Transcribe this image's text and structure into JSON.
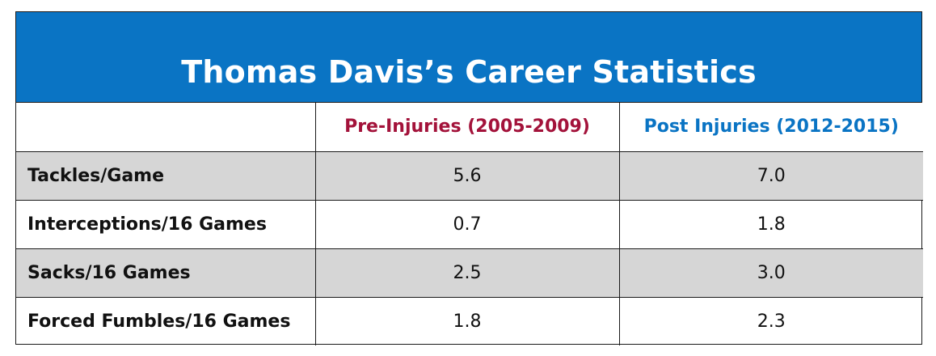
{
  "colors": {
    "header_bg": "#0a74c4",
    "header_text": "#ffffff",
    "pre_injuries_text": "#a3123a",
    "post_injuries_text": "#0a74c4",
    "shaded_row": "#d6d6d6"
  },
  "chart_data": {
    "type": "table",
    "title": "Thomas Davis’s Career Statistics",
    "columns": [
      "",
      "Pre-Injuries (2005-2009)",
      "Post Injuries (2012-2015)"
    ],
    "rows": [
      {
        "label": "Tackles/Game",
        "pre": "5.6",
        "post": "7.0"
      },
      {
        "label": "Interceptions/16 Games",
        "pre": "0.7",
        "post": "1.8"
      },
      {
        "label": "Sacks/16 Games",
        "pre": "2.5",
        "post": "3.0"
      },
      {
        "label": "Forced Fumbles/16 Games",
        "pre": "1.8",
        "post": "2.3"
      }
    ]
  }
}
